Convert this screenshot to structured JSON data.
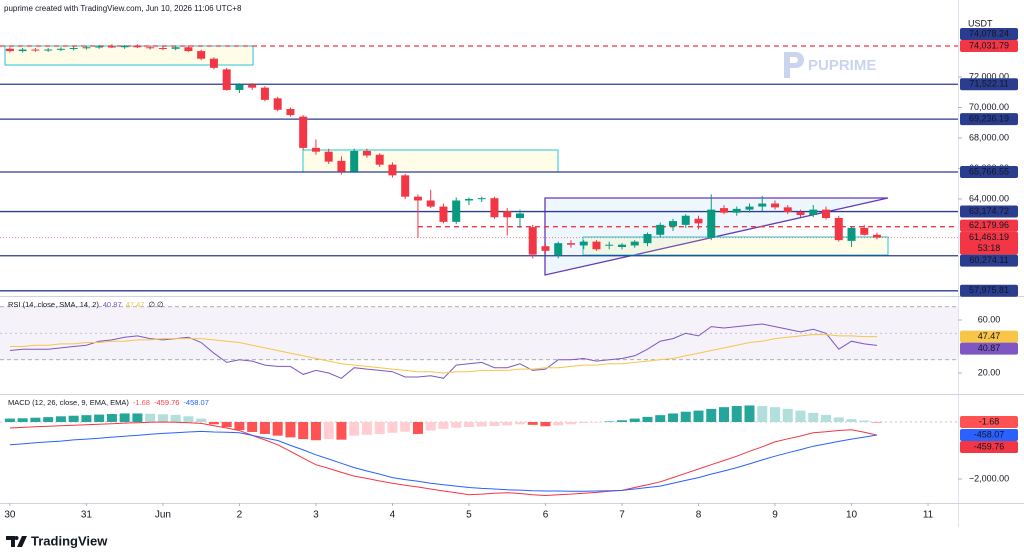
{
  "credit": "puprime created with TradingView.com, Jun 10, 2026 11:06 UTC+8",
  "watermark": "PUPRIME",
  "brand": "TradingView",
  "chart_data": [
    {
      "type": "candlestick",
      "currency": "USDT",
      "x": [
        0,
        4,
        8,
        12,
        16,
        20,
        24,
        28,
        32,
        36,
        40,
        44,
        48,
        52,
        56,
        60,
        64,
        68,
        72,
        76,
        80,
        84,
        88,
        92,
        96,
        100,
        104,
        108,
        112,
        116,
        120,
        124,
        128,
        132,
        136,
        140,
        144,
        148,
        152,
        156,
        160,
        164,
        168,
        172,
        176,
        180,
        184,
        188,
        192,
        196,
        200,
        204,
        208,
        212,
        216,
        220,
        224,
        228,
        232,
        236,
        240,
        244,
        248,
        252,
        256,
        260,
        264,
        268,
        272
      ],
      "open": [
        73850,
        73700,
        73800,
        73750,
        73800,
        73850,
        73900,
        73950,
        74000,
        73950,
        74050,
        73950,
        73900,
        73850,
        73950,
        73700,
        73200,
        72500,
        71150,
        71500,
        71300,
        70600,
        69900,
        69400,
        67350,
        67100,
        66500,
        65800,
        67150,
        66900,
        66250,
        65550,
        64150,
        63900,
        63500,
        62500,
        63900,
        64000,
        64050,
        63200,
        62750,
        62150,
        60900,
        60300,
        61100,
        60950,
        61200,
        60950,
        60850,
        60950,
        61100,
        61650,
        62200,
        62300,
        62700,
        61450,
        63400,
        63100,
        63300,
        63500,
        63700,
        63450,
        63150,
        62950,
        63300,
        62750,
        61250,
        62100,
        61650
      ],
      "high": [
        73950,
        73900,
        73900,
        73900,
        73950,
        74000,
        74050,
        74100,
        74150,
        74100,
        74150,
        74050,
        74000,
        74000,
        74050,
        73800,
        73300,
        72600,
        71600,
        71600,
        71400,
        70700,
        70000,
        69500,
        67900,
        67300,
        66800,
        67300,
        67300,
        67000,
        66400,
        65650,
        64300,
        64600,
        63700,
        64100,
        64100,
        64150,
        64150,
        63400,
        63300,
        62300,
        61100,
        61200,
        61300,
        61300,
        61300,
        61200,
        61100,
        61300,
        61800,
        62450,
        62700,
        63000,
        62900,
        64300,
        63600,
        63500,
        63700,
        64200,
        63900,
        63600,
        63300,
        63600,
        63500,
        62900,
        62200,
        62300,
        61800
      ],
      "low": [
        73600,
        73600,
        73650,
        73650,
        73700,
        73750,
        73800,
        73850,
        73900,
        73850,
        73900,
        73800,
        73750,
        73750,
        73650,
        73100,
        72500,
        71100,
        70950,
        71150,
        70400,
        69750,
        69400,
        67200,
        66900,
        66300,
        65600,
        65700,
        66700,
        66100,
        65400,
        64000,
        61450,
        63400,
        62400,
        62350,
        63600,
        63800,
        62700,
        61600,
        62100,
        60100,
        60400,
        60100,
        60800,
        60700,
        60600,
        60700,
        60700,
        60800,
        60900,
        61500,
        61900,
        62100,
        62000,
        61300,
        63000,
        62900,
        63100,
        63200,
        63300,
        63000,
        62800,
        62800,
        62650,
        61200,
        60850,
        61600,
        61350
      ],
      "close": [
        73700,
        73800,
        73750,
        73800,
        73850,
        73900,
        73950,
        74000,
        73950,
        74050,
        73950,
        73900,
        73850,
        73950,
        73700,
        73200,
        72600,
        71150,
        71500,
        71300,
        70500,
        69850,
        69500,
        67350,
        67100,
        66450,
        65800,
        67150,
        66850,
        66250,
        65550,
        64150,
        63900,
        63500,
        62500,
        63900,
        64000,
        64050,
        62800,
        62800,
        63050,
        60350,
        60600,
        61100,
        61000,
        61200,
        60700,
        61000,
        61000,
        61200,
        61700,
        62300,
        62550,
        62900,
        62400,
        63300,
        63100,
        63350,
        63500,
        63700,
        63450,
        63150,
        62950,
        63300,
        62750,
        61300,
        62100,
        61650,
        61463.19
      ],
      "up_color": "#089981",
      "down_color": "#f23645",
      "last_label": "61,463.19",
      "countdown": "53:18",
      "xlim": [
        -3.1,
        297.4
      ],
      "xticks": [
        {
          "value": 0,
          "label": "30"
        },
        {
          "value": 24,
          "label": "31"
        },
        {
          "value": 48,
          "label": "Jun"
        },
        {
          "value": 72,
          "label": "2"
        },
        {
          "value": 96,
          "label": "3"
        },
        {
          "value": 120,
          "label": "4"
        },
        {
          "value": 144,
          "label": "5"
        },
        {
          "value": 168,
          "label": "6"
        },
        {
          "value": 192,
          "label": "7"
        },
        {
          "value": 216,
          "label": "8"
        },
        {
          "value": 240,
          "label": "9"
        },
        {
          "value": 264,
          "label": "10"
        },
        {
          "value": 288,
          "label": "11"
        }
      ],
      "ylim": [
        57700,
        75870
      ],
      "yticks": [
        {
          "value": 72000,
          "label": "72,000.00"
        },
        {
          "value": 70000,
          "label": "70,000.00"
        },
        {
          "value": 68000,
          "label": "68,000.00"
        },
        {
          "value": 66000,
          "label": "66,000.00"
        },
        {
          "value": 64000,
          "label": "64,000.00"
        }
      ],
      "levels": [
        {
          "value": 74031.79,
          "label": "74,031.79",
          "color": "#f23645",
          "line": "dashed"
        },
        {
          "value": 74078.24,
          "label": "74,078.24",
          "color": "#2a3d8f",
          "line": "none"
        },
        {
          "value": 71522.11,
          "label": "71,522.11",
          "color": "#2a3d8f",
          "line": "solid"
        },
        {
          "value": 69236.19,
          "label": "69,236.19",
          "color": "#2a3d8f",
          "line": "solid"
        },
        {
          "value": 65766.55,
          "label": "65,766.55",
          "color": "#2a3d8f",
          "line": "solid"
        },
        {
          "value": 63174.72,
          "label": "63,174.72",
          "color": "#2a3d8f",
          "line": "solid"
        },
        {
          "value": 62179.96,
          "label": "62,179.96",
          "color": "#f23645",
          "line": "dashed",
          "start_x": 128
        },
        {
          "value": 60274.11,
          "label": "60,274.11",
          "color": "#2a3d8f",
          "line": "solid"
        },
        {
          "value": 57975.81,
          "label": "57,975.81",
          "color": "#2a3d8f",
          "line": "solid"
        }
      ]
    },
    {
      "type": "line",
      "title": "RSI (14, close, SMA, 14, 2)",
      "legend_suffix": "∅ ∅",
      "series": [
        {
          "color": "#7e57c2",
          "values": [
            37,
            38,
            38,
            38,
            39,
            40,
            41,
            44,
            45,
            47,
            48,
            46,
            45,
            46,
            47,
            43,
            35,
            28,
            30,
            29,
            26,
            25,
            25,
            19,
            22,
            20,
            16,
            24,
            23,
            22,
            21,
            17,
            17,
            18,
            16,
            26,
            27,
            28,
            24,
            24,
            27,
            22,
            23,
            30,
            30,
            31,
            29,
            30,
            31,
            33,
            38,
            44,
            46,
            50,
            48,
            55,
            54,
            55,
            56,
            57,
            55,
            53,
            51,
            53,
            50,
            38,
            44,
            42,
            40.87
          ]
        },
        {
          "color": "#f7c548",
          "values": [
            40,
            40,
            41,
            41,
            42,
            42,
            43,
            43,
            44,
            44,
            45,
            45,
            46,
            46,
            46,
            46,
            45,
            44,
            43,
            41,
            39,
            37,
            35,
            33,
            31,
            29,
            27,
            26,
            25,
            24,
            23,
            22,
            21,
            21,
            20,
            21,
            21,
            22,
            22,
            22,
            23,
            23,
            24,
            24,
            25,
            26,
            26,
            27,
            27,
            28,
            29,
            30,
            31,
            33,
            35,
            37,
            39,
            41,
            43,
            44,
            46,
            47,
            48,
            49,
            49,
            48,
            48,
            47.5,
            47.47
          ]
        }
      ],
      "band": [
        30,
        70
      ],
      "midline": 50,
      "ylim": [
        5.7,
        76.6
      ],
      "yticks": [
        {
          "value": 60,
          "label": "60.00"
        },
        {
          "value": 20,
          "label": "20.00"
        }
      ]
    },
    {
      "type": "macd",
      "title": "MACD (12, 26, close, 9, EMA, EMA)",
      "histogram": [
        120,
        130,
        150,
        170,
        200,
        220,
        240,
        260,
        280,
        300,
        300,
        290,
        270,
        250,
        200,
        120,
        -80,
        -180,
        -280,
        -350,
        -420,
        -480,
        -540,
        -600,
        -640,
        -600,
        -620,
        -480,
        -450,
        -420,
        -380,
        -340,
        -420,
        -300,
        -240,
        -200,
        -180,
        -160,
        -140,
        -120,
        -80,
        -100,
        -150,
        -120,
        -80,
        -40,
        -20,
        20,
        60,
        120,
        180,
        240,
        300,
        360,
        400,
        460,
        520,
        560,
        580,
        560,
        520,
        460,
        400,
        320,
        250,
        160,
        100,
        50,
        -1.68
      ],
      "histogram_colors": [
        "#26a69a",
        "#b2dfdb",
        "#ff5252",
        "#ffcdd2"
      ],
      "series": [
        {
          "color": "#f23645",
          "values": [
            -210,
            -190,
            -170,
            -150,
            -130,
            -115,
            -100,
            -80,
            -60,
            -40,
            -25,
            -10,
            0,
            -10,
            -30,
            -50,
            -130,
            -210,
            -300,
            -470,
            -630,
            -800,
            -1030,
            -1270,
            -1500,
            -1630,
            -1770,
            -1900,
            -1980,
            -2070,
            -2150,
            -2220,
            -2280,
            -2350,
            -2420,
            -2480,
            -2550,
            -2530,
            -2500,
            -2480,
            -2510,
            -2550,
            -2580,
            -2550,
            -2530,
            -2500,
            -2470,
            -2430,
            -2400,
            -2300,
            -2200,
            -2100,
            -1950,
            -1800,
            -1650,
            -1500,
            -1350,
            -1200,
            -1030,
            -870,
            -700,
            -590,
            -490,
            -380,
            -340,
            -300,
            -270,
            -360,
            -459.76
          ]
        },
        {
          "color": "#2962ff",
          "values": [
            -800,
            -770,
            -730,
            -700,
            -670,
            -630,
            -600,
            -570,
            -530,
            -500,
            -470,
            -430,
            -400,
            -380,
            -350,
            -330,
            -350,
            -360,
            -380,
            -470,
            -560,
            -650,
            -820,
            -980,
            -1150,
            -1300,
            -1450,
            -1600,
            -1720,
            -1830,
            -1950,
            -2020,
            -2080,
            -2150,
            -2200,
            -2250,
            -2300,
            -2330,
            -2350,
            -2380,
            -2390,
            -2410,
            -2420,
            -2420,
            -2430,
            -2430,
            -2420,
            -2410,
            -2400,
            -2350,
            -2300,
            -2250,
            -2150,
            -2050,
            -1950,
            -1830,
            -1720,
            -1600,
            -1470,
            -1330,
            -1200,
            -1080,
            -970,
            -850,
            -770,
            -680,
            -600,
            -530,
            -458.07
          ]
        }
      ],
      "ylim": [
        -2737,
        912
      ],
      "yticks": [
        {
          "value": -2000,
          "label": "−2,000.00"
        }
      ]
    }
  ]
}
